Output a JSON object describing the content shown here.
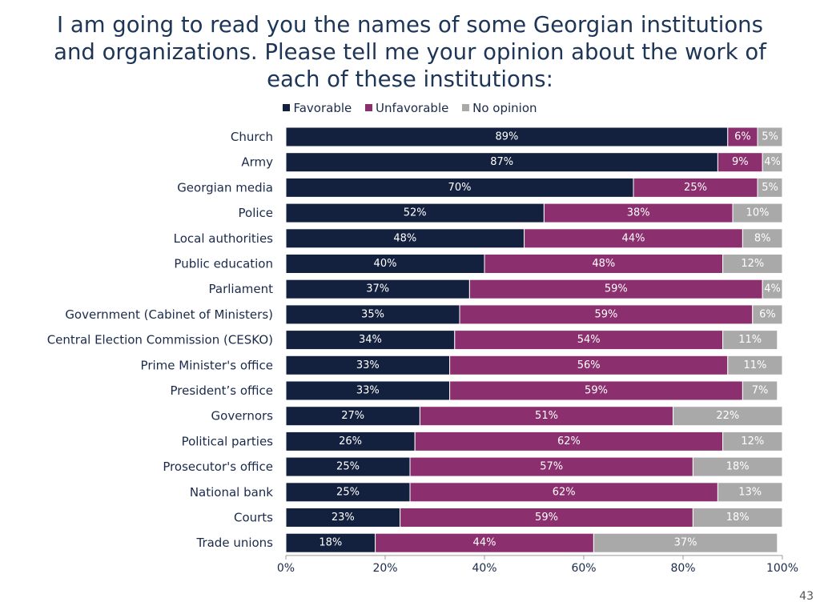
{
  "title_lines": [
    "I am going to read you the names of some Georgian institutions",
    "and organizations. Please tell me your opinion about the work of",
    "each of these institutions:"
  ],
  "page_number": "43",
  "colors": {
    "favorable": "#13213f",
    "unfavorable": "#8b2f6e",
    "no_opinion": "#a9a9a9",
    "title": "#1d3557",
    "axis_text": "#1b2a4a"
  },
  "chart_data": {
    "type": "bar",
    "orientation": "horizontal",
    "stacked": "100%",
    "categories": [
      "Church",
      "Army",
      "Georgian media",
      "Police",
      "Local authorities",
      "Public education",
      "Parliament",
      "Government (Cabinet of Ministers)",
      "Central Election Commission (CESKO)",
      "Prime Minister's office",
      "President’s office",
      "Governors",
      "Political parties",
      "Prosecutor's office",
      "National bank",
      "Courts",
      "Trade unions"
    ],
    "series": [
      {
        "name": "Favorable",
        "color": "#13213f",
        "values": [
          89,
          87,
          70,
          52,
          48,
          40,
          37,
          35,
          34,
          33,
          33,
          27,
          26,
          25,
          25,
          23,
          18
        ]
      },
      {
        "name": "Unfavorable",
        "color": "#8b2f6e",
        "values": [
          6,
          9,
          25,
          38,
          44,
          48,
          59,
          59,
          54,
          56,
          59,
          51,
          62,
          57,
          62,
          59,
          44
        ]
      },
      {
        "name": "No opinion",
        "color": "#a9a9a9",
        "values": [
          5,
          4,
          5,
          10,
          8,
          12,
          4,
          6,
          11,
          11,
          7,
          22,
          12,
          18,
          13,
          18,
          37
        ]
      }
    ],
    "data_label_suffix": "%",
    "xlim": [
      0,
      100
    ],
    "x_ticks": [
      "0%",
      "20%",
      "40%",
      "60%",
      "80%",
      "100%"
    ],
    "legend_position": "top",
    "grid": false
  }
}
